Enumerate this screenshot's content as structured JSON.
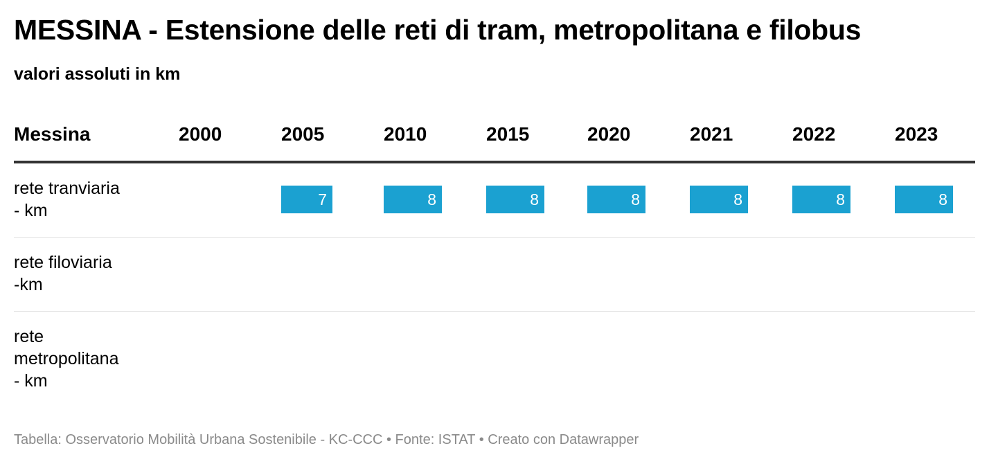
{
  "title": "MESSINA - Estensione delle reti di tram, metropolitana e filobus",
  "subtitle": "valori assoluti in km",
  "footer": "Tabella: Osservatorio Mobilità Urbana Sostenibile - KC-CCC • Fonte: ISTAT • Creato con Datawrapper",
  "colors": {
    "bar": "#1ba1d1",
    "header_rule": "#333333",
    "row_rule": "#e2e2e2",
    "footer_text": "#8a8a8a"
  },
  "chart_data": {
    "type": "table",
    "columns": [
      "Messina",
      "2000",
      "2005",
      "2010",
      "2015",
      "2020",
      "2021",
      "2022",
      "2023"
    ],
    "rows": [
      {
        "label": "rete tranviaria\n- km",
        "values": [
          null,
          7,
          8,
          8,
          8,
          8,
          8,
          8
        ]
      },
      {
        "label": "rete filoviaria\n-km",
        "values": [
          null,
          null,
          null,
          null,
          null,
          null,
          null,
          null
        ]
      },
      {
        "label": "rete\nmetropolitana\n- km",
        "values": [
          null,
          null,
          null,
          null,
          null,
          null,
          null,
          null
        ]
      }
    ],
    "bar_max": 8
  }
}
